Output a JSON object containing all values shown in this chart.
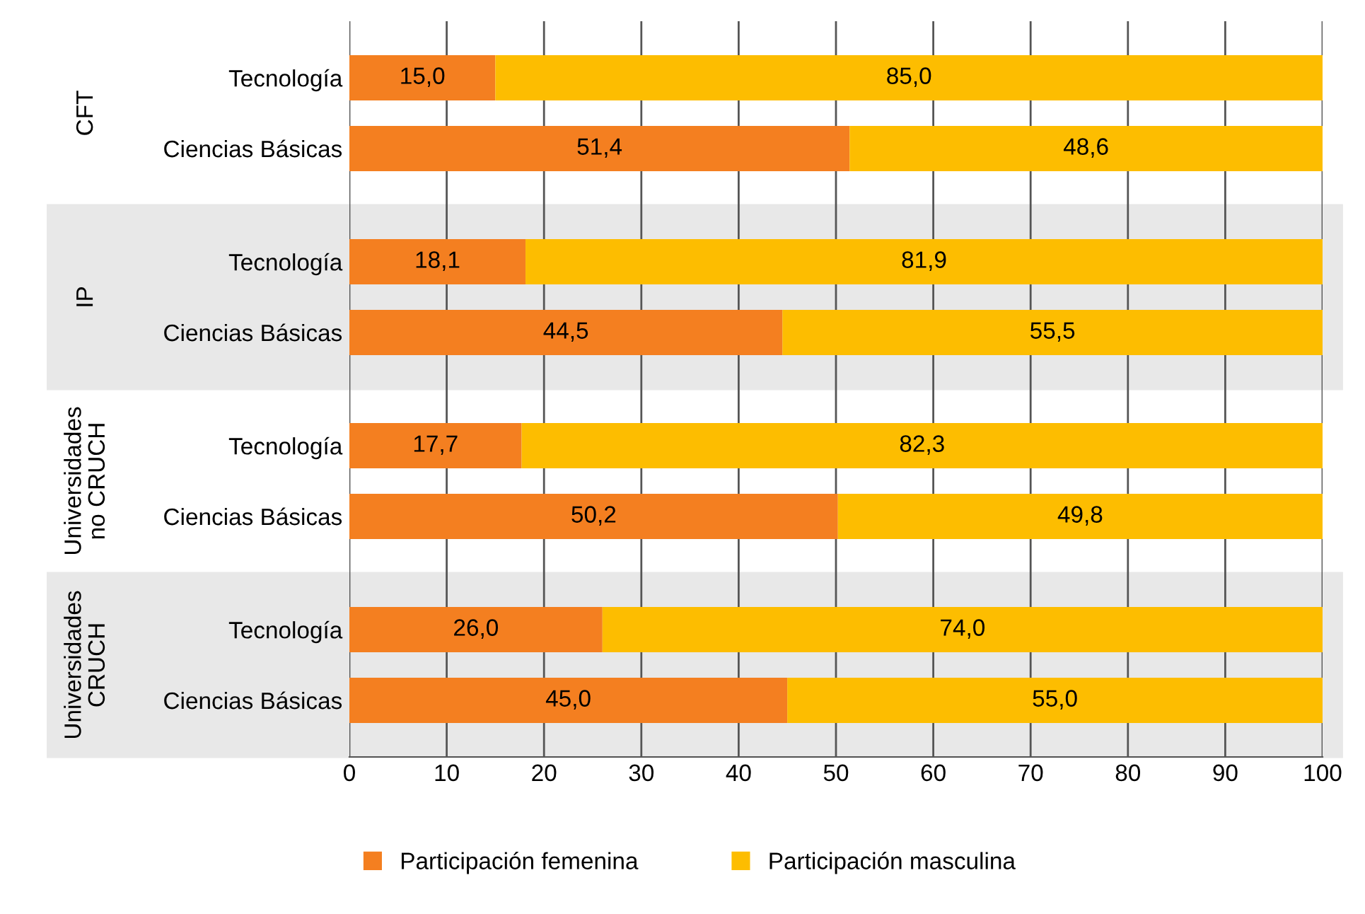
{
  "chart_data": {
    "type": "bar",
    "orientation": "horizontal",
    "stacked": true,
    "categories": [
      "Tecnología",
      "Ciencias Básicas",
      "Tecnología",
      "Ciencias Básicas",
      "Tecnología",
      "Ciencias Básicas",
      "Tecnología",
      "Ciencias Básicas"
    ],
    "series": [
      {
        "name": "Participación femenina",
        "color": "#f47f20",
        "values": [
          15.0,
          51.4,
          18.1,
          44.5,
          17.7,
          50.2,
          26.0,
          45.0
        ]
      },
      {
        "name": "Participación masculina",
        "color": "#fdbd00",
        "values": [
          85.0,
          48.6,
          81.9,
          55.5,
          82.3,
          49.8,
          74.0,
          55.0
        ]
      }
    ],
    "value_labels": [
      [
        "15,0",
        "51,4",
        "18,1",
        "44,5",
        "17,7",
        "50,2",
        "26,0",
        "45,0"
      ],
      [
        "85,0",
        "48,6",
        "81,9",
        "55,5",
        "82,3",
        "49,8",
        "74,0",
        "55,0"
      ]
    ],
    "annotations": [
      "CFT",
      "IP",
      "Universidades\nno CRUCH",
      "Universidades\nCRUCH"
    ],
    "xlim": [
      0,
      100
    ],
    "xticks": [
      0,
      10,
      20,
      30,
      40,
      50,
      60,
      70,
      80,
      90,
      100
    ],
    "grid": "x",
    "legend": "bottom"
  }
}
